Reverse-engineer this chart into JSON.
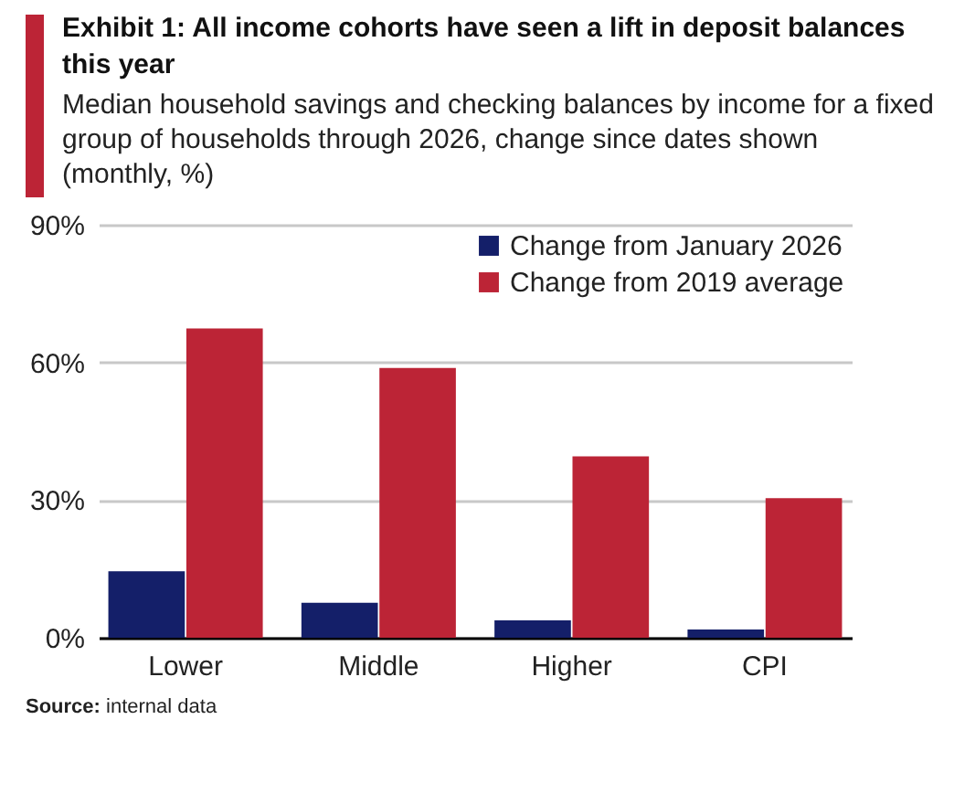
{
  "chart_data": {
    "type": "bar",
    "title": "Exhibit 1: All income cohorts have seen a lift in deposit balances this year",
    "subtitle": "Median household savings and checking balances by income for a fixed group of households through 2026, change since dates shown (monthly, %)",
    "categories": [
      "Lower",
      "Middle",
      "Higher",
      "CPI"
    ],
    "series": [
      {
        "name": "Change from January 2026",
        "color": "#141f69",
        "values": [
          14.5,
          7.6,
          3.8,
          1.8
        ]
      },
      {
        "name": "Change from 2019 average",
        "color": "#bc2436",
        "values": [
          67.4,
          58.8,
          39.5,
          30.4
        ]
      }
    ],
    "ylim": [
      0,
      90
    ],
    "yticks": [
      {
        "value": 0,
        "label": "0%"
      },
      {
        "value": 30,
        "label": "30%"
      },
      {
        "value": 60,
        "label": "60%"
      },
      {
        "value": 90,
        "label": "90%"
      }
    ],
    "grid": "y",
    "legend": "top right",
    "annotations": [
      "Source: internal data"
    ]
  }
}
